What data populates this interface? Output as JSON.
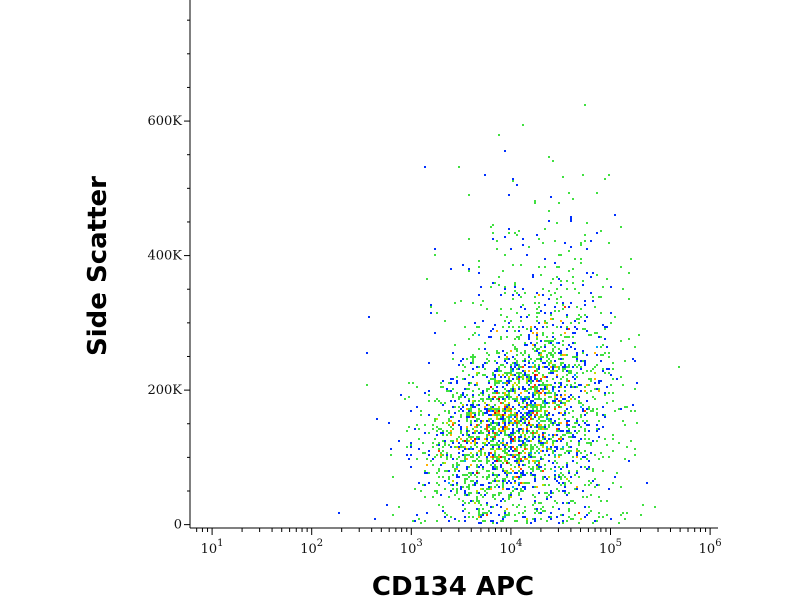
{
  "chart_data": {
    "type": "scatter",
    "xlabel": "CD134 APC",
    "ylabel": "Side Scatter",
    "x_scale": "log",
    "xlim": [
      6,
      1200000
    ],
    "ylim": [
      -5000,
      780000
    ],
    "x_ticks": [
      {
        "base": "10",
        "exp": "1",
        "value": 10
      },
      {
        "base": "10",
        "exp": "2",
        "value": 100
      },
      {
        "base": "10",
        "exp": "3",
        "value": 1000
      },
      {
        "base": "10",
        "exp": "4",
        "value": 10000
      },
      {
        "base": "10",
        "exp": "5",
        "value": 100000
      },
      {
        "base": "10",
        "exp": "6",
        "value": 1000000
      }
    ],
    "y_ticks": [
      {
        "label": "0",
        "value": 0
      },
      {
        "label": "200K",
        "value": 200000
      },
      {
        "label": "400K",
        "value": 400000
      },
      {
        "label": "600K",
        "value": 600000
      }
    ],
    "density_colors": [
      "#0000c8",
      "#0030ff",
      "#00a0ff",
      "#00d8c0",
      "#40e040",
      "#c0e000",
      "#ffb000",
      "#ff4000",
      "#e00000"
    ],
    "population": {
      "center_x": 12000,
      "center_y": 150000,
      "spread_log_x": 0.45,
      "spread_y": 60000,
      "events": 14000
    },
    "grid": false,
    "legend": "none"
  }
}
